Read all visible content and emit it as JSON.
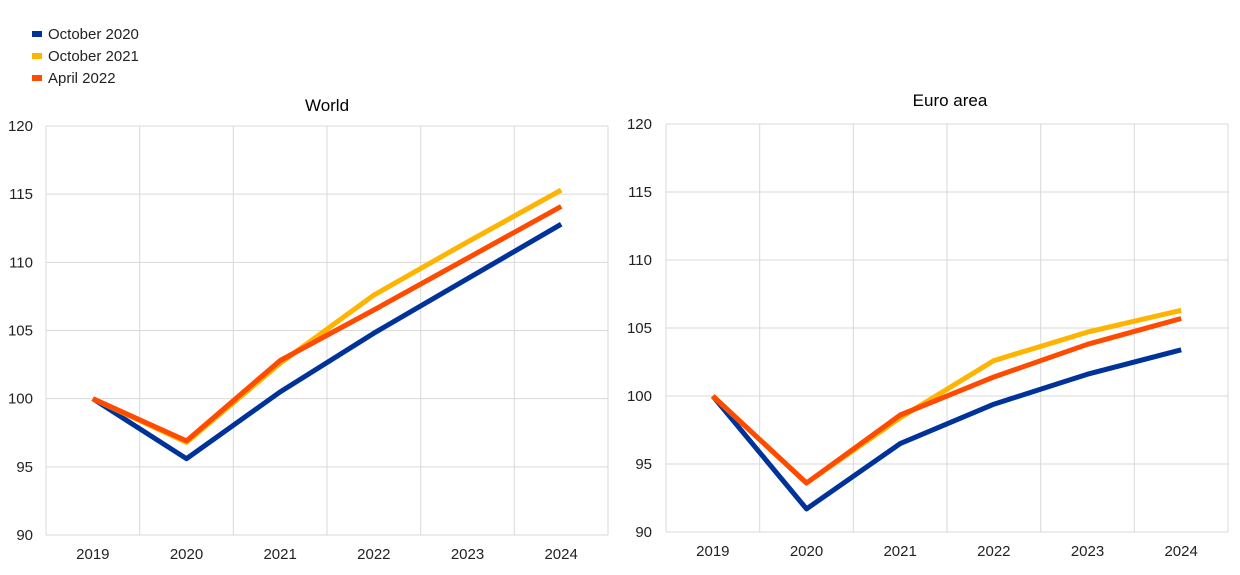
{
  "legend": [
    {
      "label": "October 2020",
      "color": "#003399"
    },
    {
      "label": "October 2021",
      "color": "#FFB400"
    },
    {
      "label": "April 2022",
      "color": "#FF4B00"
    }
  ],
  "chart_data": [
    {
      "type": "line",
      "title": "World",
      "categories": [
        "2019",
        "2020",
        "2021",
        "2022",
        "2023",
        "2024"
      ],
      "ylim": [
        90,
        120
      ],
      "yticks": [
        "90",
        "95",
        "100",
        "105",
        "110",
        "115",
        "120"
      ],
      "grid": true,
      "legend_position": "top-left",
      "series": [
        {
          "name": "October 2020",
          "color": "#003399",
          "values": [
            100,
            95.6,
            100.5,
            104.8,
            108.8,
            112.8
          ]
        },
        {
          "name": "October 2021",
          "color": "#FFB400",
          "values": [
            100,
            96.8,
            102.6,
            107.6,
            111.5,
            115.3
          ]
        },
        {
          "name": "April 2022",
          "color": "#FF4B00",
          "values": [
            100,
            96.9,
            102.8,
            106.5,
            110.3,
            114.1
          ]
        }
      ]
    },
    {
      "type": "line",
      "title": "Euro area",
      "categories": [
        "2019",
        "2020",
        "2021",
        "2022",
        "2023",
        "2024"
      ],
      "ylim": [
        90,
        120
      ],
      "yticks": [
        "90",
        "95",
        "100",
        "105",
        "110",
        "115",
        "120"
      ],
      "grid": true,
      "legend_position": "top-left",
      "series": [
        {
          "name": "October 2020",
          "color": "#003399",
          "values": [
            100,
            91.7,
            96.5,
            99.4,
            101.6,
            103.4
          ]
        },
        {
          "name": "October 2021",
          "color": "#FFB400",
          "values": [
            100,
            93.6,
            98.4,
            102.6,
            104.7,
            106.3
          ]
        },
        {
          "name": "April 2022",
          "color": "#FF4B00",
          "values": [
            100,
            93.6,
            98.6,
            101.4,
            103.8,
            105.7
          ]
        }
      ]
    }
  ]
}
